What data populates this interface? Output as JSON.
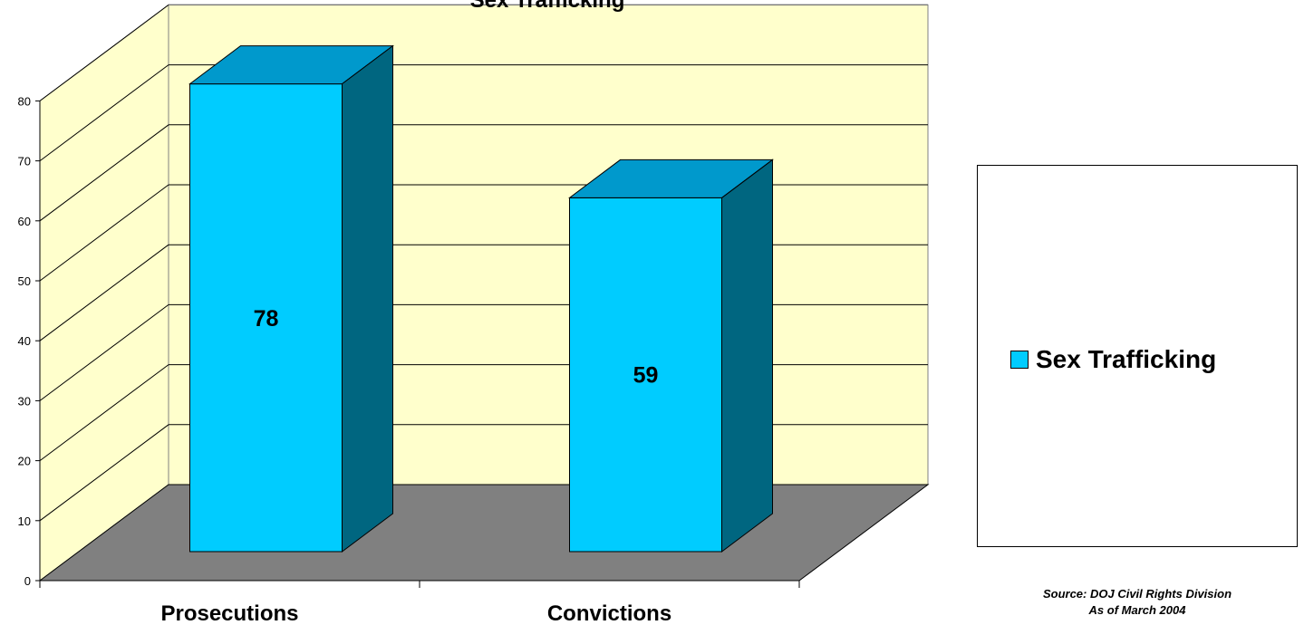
{
  "chart_data": {
    "type": "bar",
    "title": "Sex Trafficking",
    "categories": [
      "Prosecutions",
      "Convictions"
    ],
    "series": [
      {
        "name": "Sex Trafficking",
        "values": [
          78,
          59
        ]
      }
    ],
    "ylim": [
      0,
      80
    ],
    "yticks": [
      "0",
      "10",
      "20",
      "30",
      "40",
      "50",
      "60",
      "70",
      "80"
    ],
    "data_labels": [
      "78",
      "59"
    ],
    "grid": true,
    "three_d": true,
    "legend_position": "right"
  },
  "colors": {
    "bar_front": "#00ccff",
    "bar_top": "#0099cc",
    "bar_side": "#006680",
    "back_wall": "#ffffcc",
    "side_wall": "#ffffcc",
    "floor": "#808080"
  },
  "legend": {
    "label": "Sex Trafficking"
  },
  "source": {
    "line1": "Source:  DOJ Civil Rights Division",
    "line2": "As of March 2004"
  }
}
